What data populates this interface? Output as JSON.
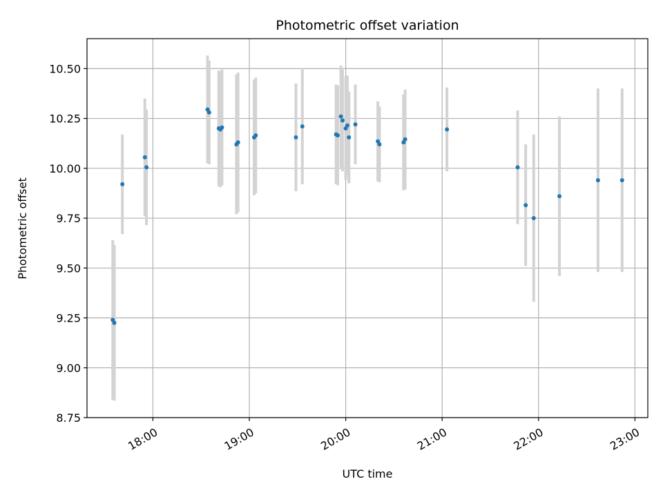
{
  "chart_data": {
    "type": "scatter",
    "title": "Photometric offset variation",
    "xlabel": "UTC time",
    "ylabel": "Photometric offset",
    "x_ticks": [
      "18:00",
      "19:00",
      "20:00",
      "21:00",
      "22:00",
      "23:00"
    ],
    "y_ticks": [
      "8.75",
      "9.00",
      "9.25",
      "9.50",
      "9.75",
      "10.00",
      "10.25",
      "10.50"
    ],
    "xlim": [
      "17:19",
      "23:08"
    ],
    "ylim": [
      8.75,
      10.65
    ],
    "grid": true,
    "colors": {
      "marker": "#1f77b4",
      "errorbar": "#d3d3d3",
      "grid": "#b0b0b0"
    },
    "points": [
      {
        "x": "17:35",
        "y": 9.24,
        "err": 0.4
      },
      {
        "x": "17:36",
        "y": 9.225,
        "err": 0.39
      },
      {
        "x": "17:41",
        "y": 9.92,
        "err": 0.25
      },
      {
        "x": "17:55",
        "y": 10.055,
        "err": 0.295
      },
      {
        "x": "17:56",
        "y": 10.005,
        "err": 0.29
      },
      {
        "x": "18:34",
        "y": 10.295,
        "err": 0.27
      },
      {
        "x": "18:35",
        "y": 10.28,
        "err": 0.26
      },
      {
        "x": "18:41",
        "y": 10.2,
        "err": 0.29
      },
      {
        "x": "18:42",
        "y": 10.195,
        "err": 0.29
      },
      {
        "x": "18:43",
        "y": 10.205,
        "err": 0.29
      },
      {
        "x": "18:52",
        "y": 10.12,
        "err": 0.35
      },
      {
        "x": "18:53",
        "y": 10.13,
        "err": 0.35
      },
      {
        "x": "19:03",
        "y": 10.155,
        "err": 0.29
      },
      {
        "x": "19:04",
        "y": 10.165,
        "err": 0.29
      },
      {
        "x": "19:29",
        "y": 10.155,
        "err": 0.27
      },
      {
        "x": "19:33",
        "y": 10.21,
        "err": 0.29
      },
      {
        "x": "19:54",
        "y": 10.17,
        "err": 0.25
      },
      {
        "x": "19:55",
        "y": 10.165,
        "err": 0.25
      },
      {
        "x": "19:57",
        "y": 10.26,
        "err": 0.255
      },
      {
        "x": "19:58",
        "y": 10.24,
        "err": 0.255
      },
      {
        "x": "20:00",
        "y": 10.2,
        "err": 0.26
      },
      {
        "x": "20:01",
        "y": 10.215,
        "err": 0.25
      },
      {
        "x": "20:02",
        "y": 10.155,
        "err": 0.23
      },
      {
        "x": "20:06",
        "y": 10.22,
        "err": 0.2
      },
      {
        "x": "20:20",
        "y": 10.135,
        "err": 0.2
      },
      {
        "x": "20:21",
        "y": 10.12,
        "err": 0.19
      },
      {
        "x": "20:36",
        "y": 10.13,
        "err": 0.24
      },
      {
        "x": "20:37",
        "y": 10.145,
        "err": 0.25
      },
      {
        "x": "21:03",
        "y": 10.195,
        "err": 0.21
      },
      {
        "x": "21:47",
        "y": 10.005,
        "err": 0.285
      },
      {
        "x": "21:52",
        "y": 9.815,
        "err": 0.305
      },
      {
        "x": "21:57",
        "y": 9.75,
        "err": 0.42
      },
      {
        "x": "22:13",
        "y": 9.86,
        "err": 0.4
      },
      {
        "x": "22:37",
        "y": 9.94,
        "err": 0.46
      },
      {
        "x": "22:52",
        "y": 9.94,
        "err": 0.46
      }
    ]
  }
}
